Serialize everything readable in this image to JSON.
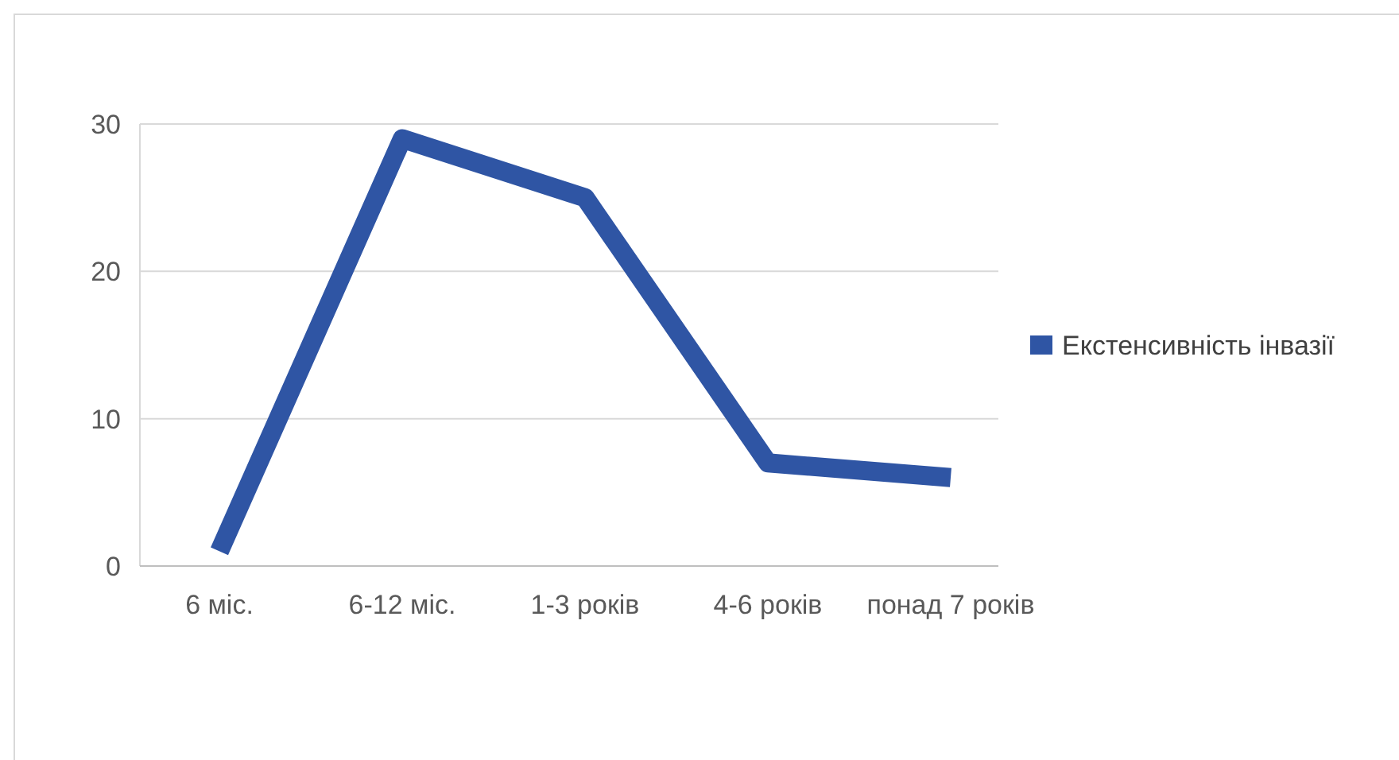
{
  "chart_data": {
    "type": "line",
    "categories": [
      "6 міс.",
      "6-12 міс.",
      "1-3 років",
      "4-6 років",
      "понад 7 років"
    ],
    "series": [
      {
        "name": "Екстенсивність інвазії",
        "color": "#2f55a4",
        "values": [
          1,
          29,
          25,
          7,
          6
        ]
      }
    ],
    "ylim": [
      0,
      30
    ],
    "yticks": [
      0,
      10,
      20,
      30
    ],
    "grid": "y",
    "legend": "right",
    "marker": "none",
    "line_style": "solid"
  }
}
